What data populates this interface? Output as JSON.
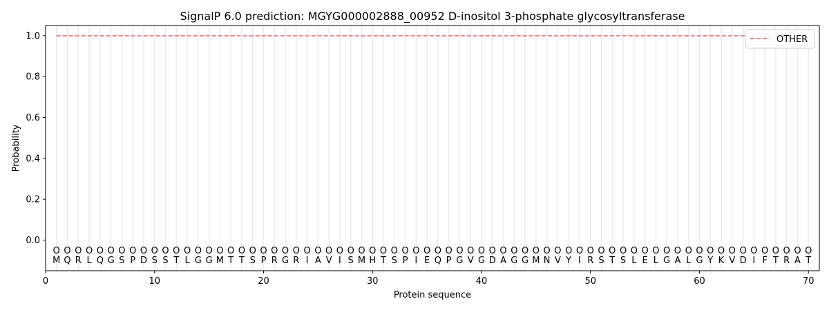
{
  "chart_data": {
    "type": "line",
    "title": "SignalP 6.0 prediction: MGYG000002888_00952 D-inositol 3-phosphate glycosyltransferase",
    "xlabel": "Protein sequence",
    "ylabel": "Probability",
    "xlim": [
      0,
      71
    ],
    "ylim": [
      -0.15,
      1.05
    ],
    "xticks": [
      0,
      10,
      20,
      30,
      40,
      50,
      60,
      70
    ],
    "yticks": [
      0.0,
      0.2,
      0.4,
      0.6,
      0.8,
      1.0
    ],
    "grid": "vertical lines at each residue",
    "legend_position": "top-right",
    "sequence": [
      "M",
      "Q",
      "R",
      "L",
      "Q",
      "G",
      "S",
      "P",
      "D",
      "S",
      "S",
      "T",
      "L",
      "G",
      "G",
      "M",
      "T",
      "T",
      "S",
      "P",
      "R",
      "G",
      "R",
      "I",
      "A",
      "V",
      "I",
      "S",
      "M",
      "H",
      "T",
      "S",
      "P",
      "I",
      "E",
      "Q",
      "P",
      "G",
      "V",
      "G",
      "D",
      "A",
      "G",
      "G",
      "M",
      "N",
      "V",
      "Y",
      "I",
      "R",
      "S",
      "T",
      "S",
      "L",
      "E",
      "L",
      "G",
      "A",
      "L",
      "G",
      "Y",
      "K",
      "V",
      "D",
      "I",
      "F",
      "T",
      "R",
      "A",
      "T"
    ],
    "region_label": "O",
    "series": [
      {
        "name": "OTHER",
        "color": "#f08080",
        "style": "dashed",
        "x_range": [
          1,
          70
        ],
        "value": 1.0
      }
    ]
  }
}
